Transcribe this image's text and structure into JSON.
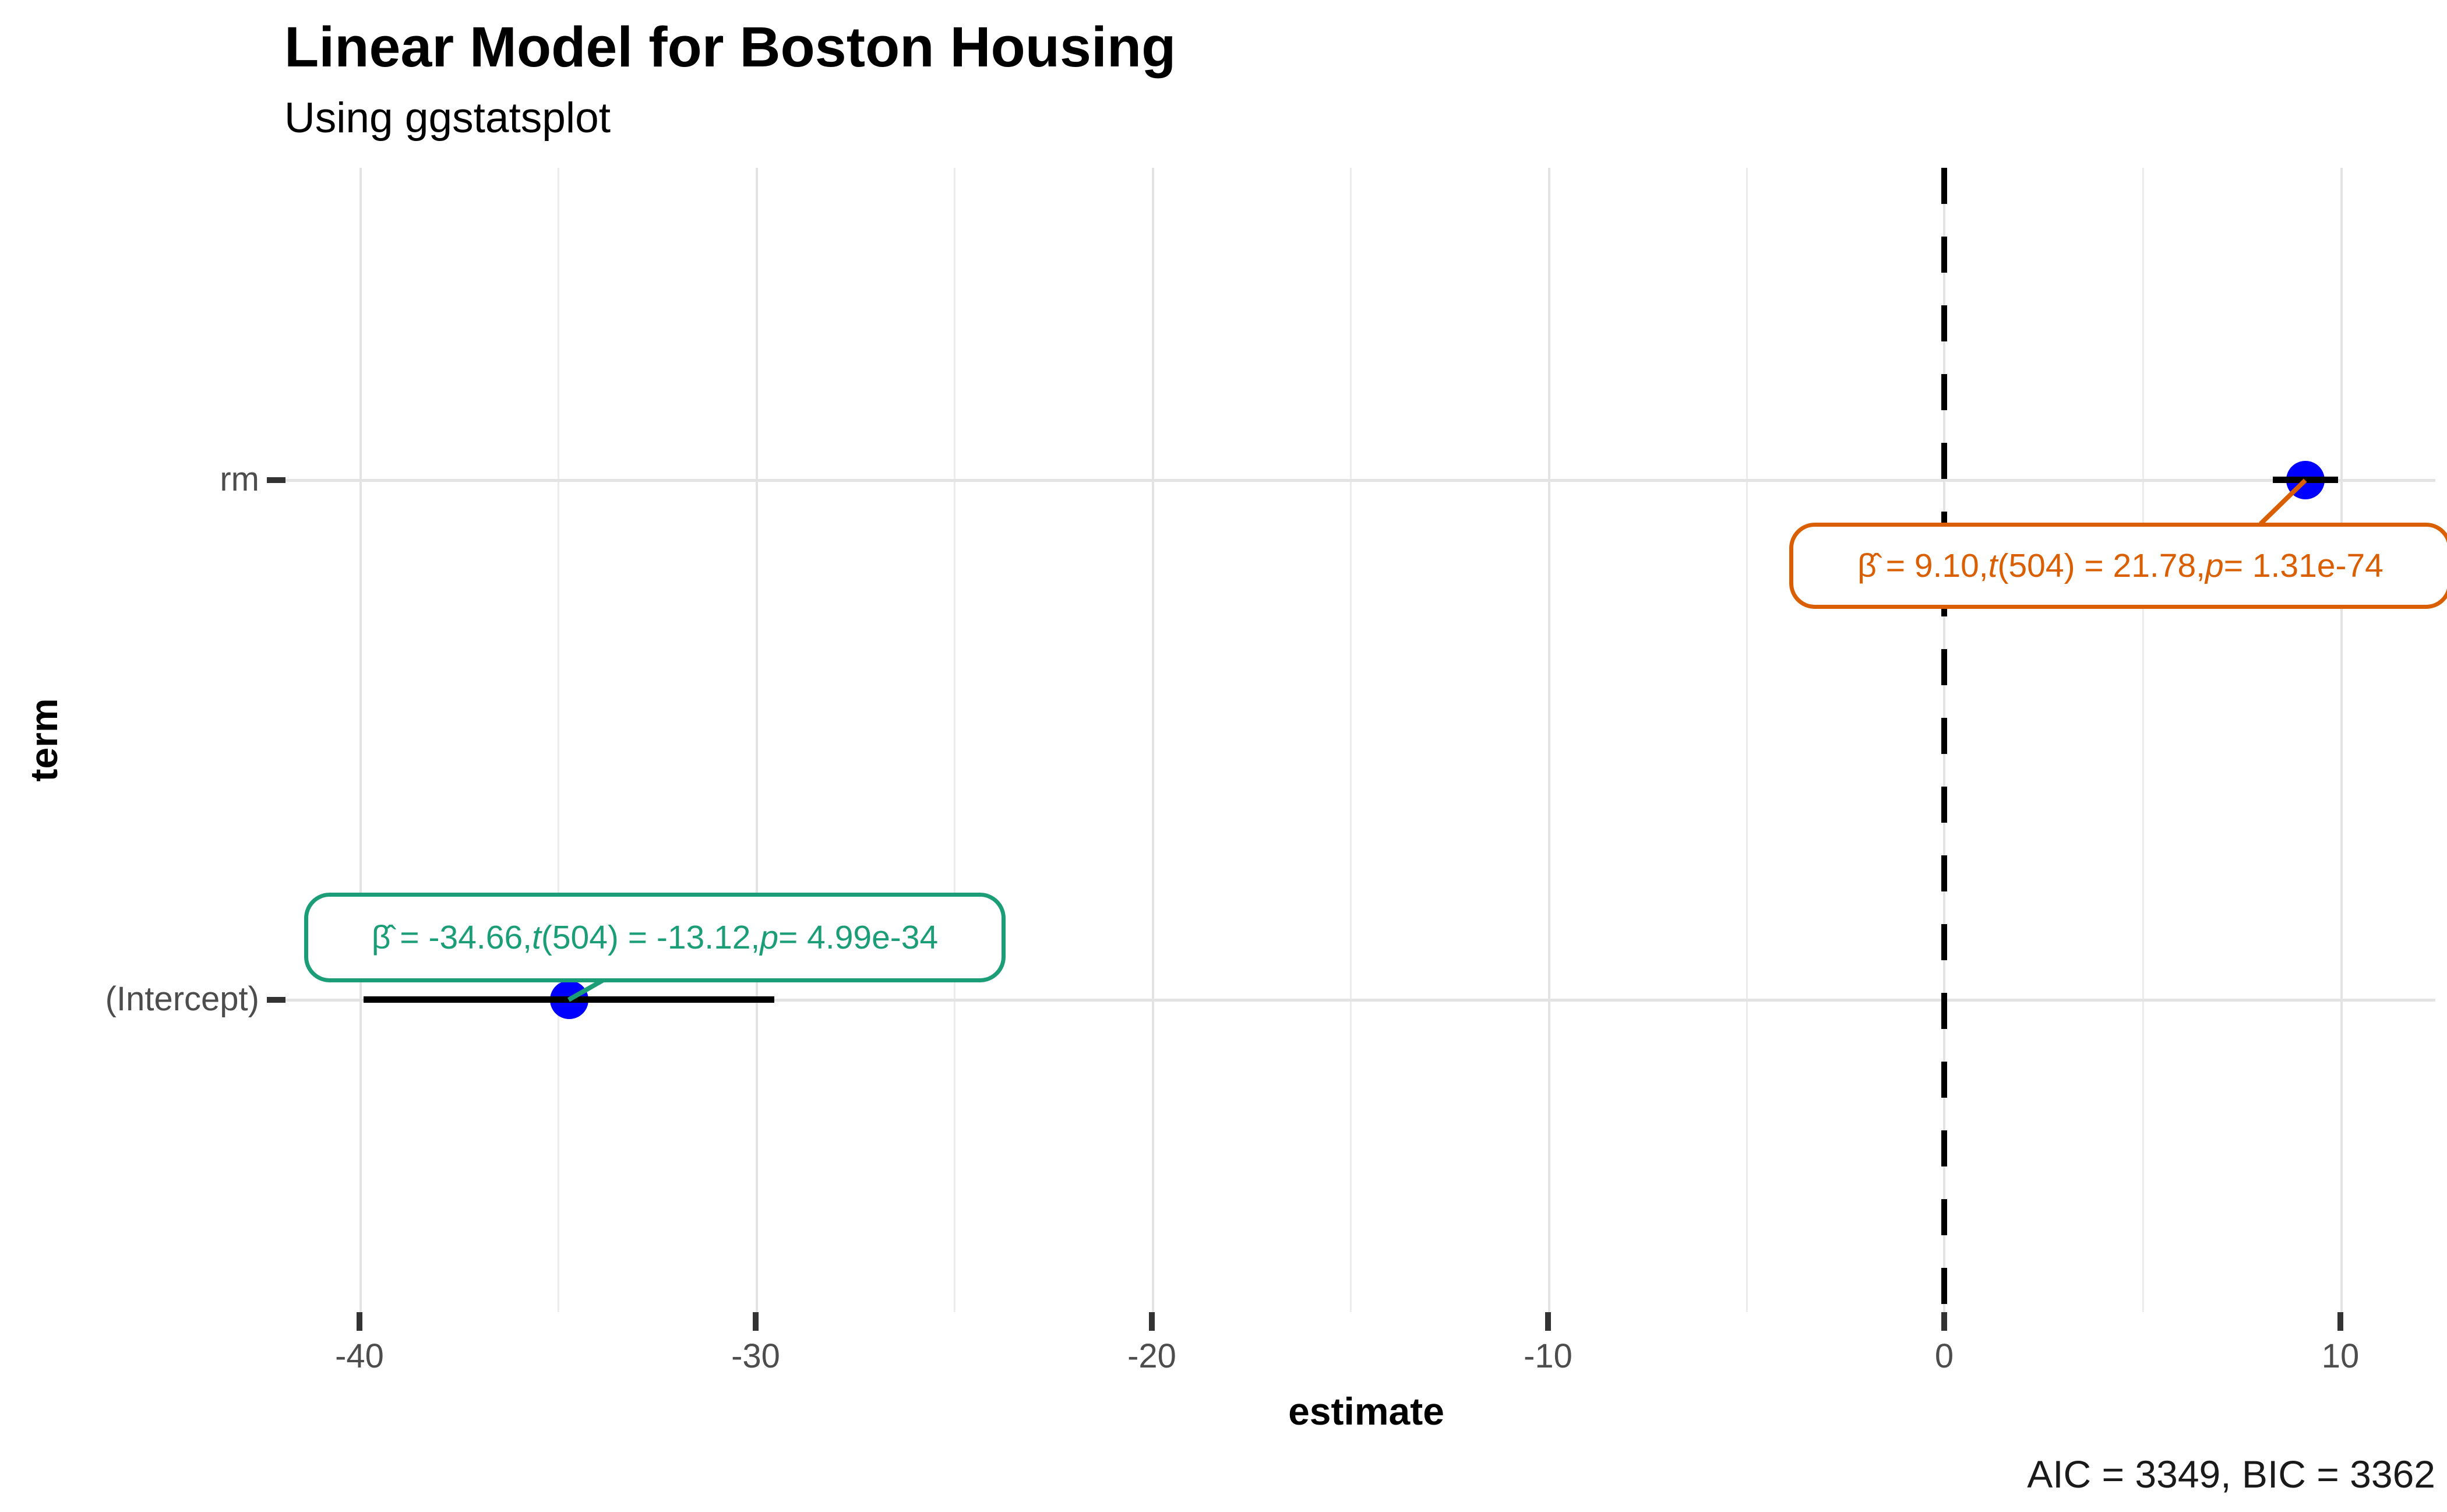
{
  "chart_data": {
    "type": "scatter",
    "variant": "coefficient-dot-whisker-plot",
    "source_package": "ggstatsplot",
    "title": "Linear Model for Boston Housing",
    "subtitle": "Using ggstatsplot",
    "caption": "AIC = 3349, BIC = 3362",
    "xlabel": "estimate",
    "ylabel": "term",
    "xlim": [
      -41.9,
      12.4
    ],
    "x_ticks": [
      -40,
      -30,
      -20,
      -10,
      0,
      10
    ],
    "x_tick_labels": [
      "-40",
      "-30",
      "-20",
      "-10",
      "0",
      "10"
    ],
    "categories": [
      "rm",
      "(Intercept)"
    ],
    "grid": true,
    "legend_position": "none",
    "reference_line": {
      "x": 0,
      "linetype": "dashed",
      "color": "#000000"
    },
    "point_style": {
      "shape": "circle",
      "color": "#0000FF"
    },
    "series": [
      {
        "term": "rm",
        "estimate": 9.1,
        "conf_low": 8.28,
        "conf_high": 9.92,
        "statistic_t": 21.78,
        "df": 504,
        "p_value": "1.31e-74",
        "label_text": "β̂ = 9.10, t(504) = 21.78, p = 1.31e-74",
        "label_color": "#D95F02",
        "label_segments": [
          {
            "t": "β̂ = 9.10, ",
            "i": false
          },
          {
            "t": "t",
            "i": true
          },
          {
            "t": "(504) = 21.78, ",
            "i": false
          },
          {
            "t": "p",
            "i": true
          },
          {
            "t": " = 1.31e-74",
            "i": false
          }
        ]
      },
      {
        "term": "(Intercept)",
        "estimate": -34.66,
        "conf_low": -39.84,
        "conf_high": -29.48,
        "statistic_t": -13.12,
        "df": 504,
        "p_value": "4.99e-34",
        "label_text": "β̂ = -34.66, t(504) = -13.12, p = 4.99e-34",
        "label_color": "#1B9E77",
        "label_segments": [
          {
            "t": "β̂ = -34.66, ",
            "i": false
          },
          {
            "t": "t",
            "i": true
          },
          {
            "t": "(504) = -13.12, ",
            "i": false
          },
          {
            "t": "p",
            "i": true
          },
          {
            "t": " = 4.99e-34",
            "i": false
          }
        ]
      }
    ]
  },
  "colors": {
    "point": "#0000FF",
    "grid_major": "#E3E3E3",
    "grid_minor": "#ECECEC",
    "axis_text": "#4D4D4D",
    "tick_mark": "#333333",
    "reference_line": "#000000",
    "label_rm": "#D95F02",
    "label_intercept": "#1B9E77",
    "background": "#FFFFFF"
  }
}
